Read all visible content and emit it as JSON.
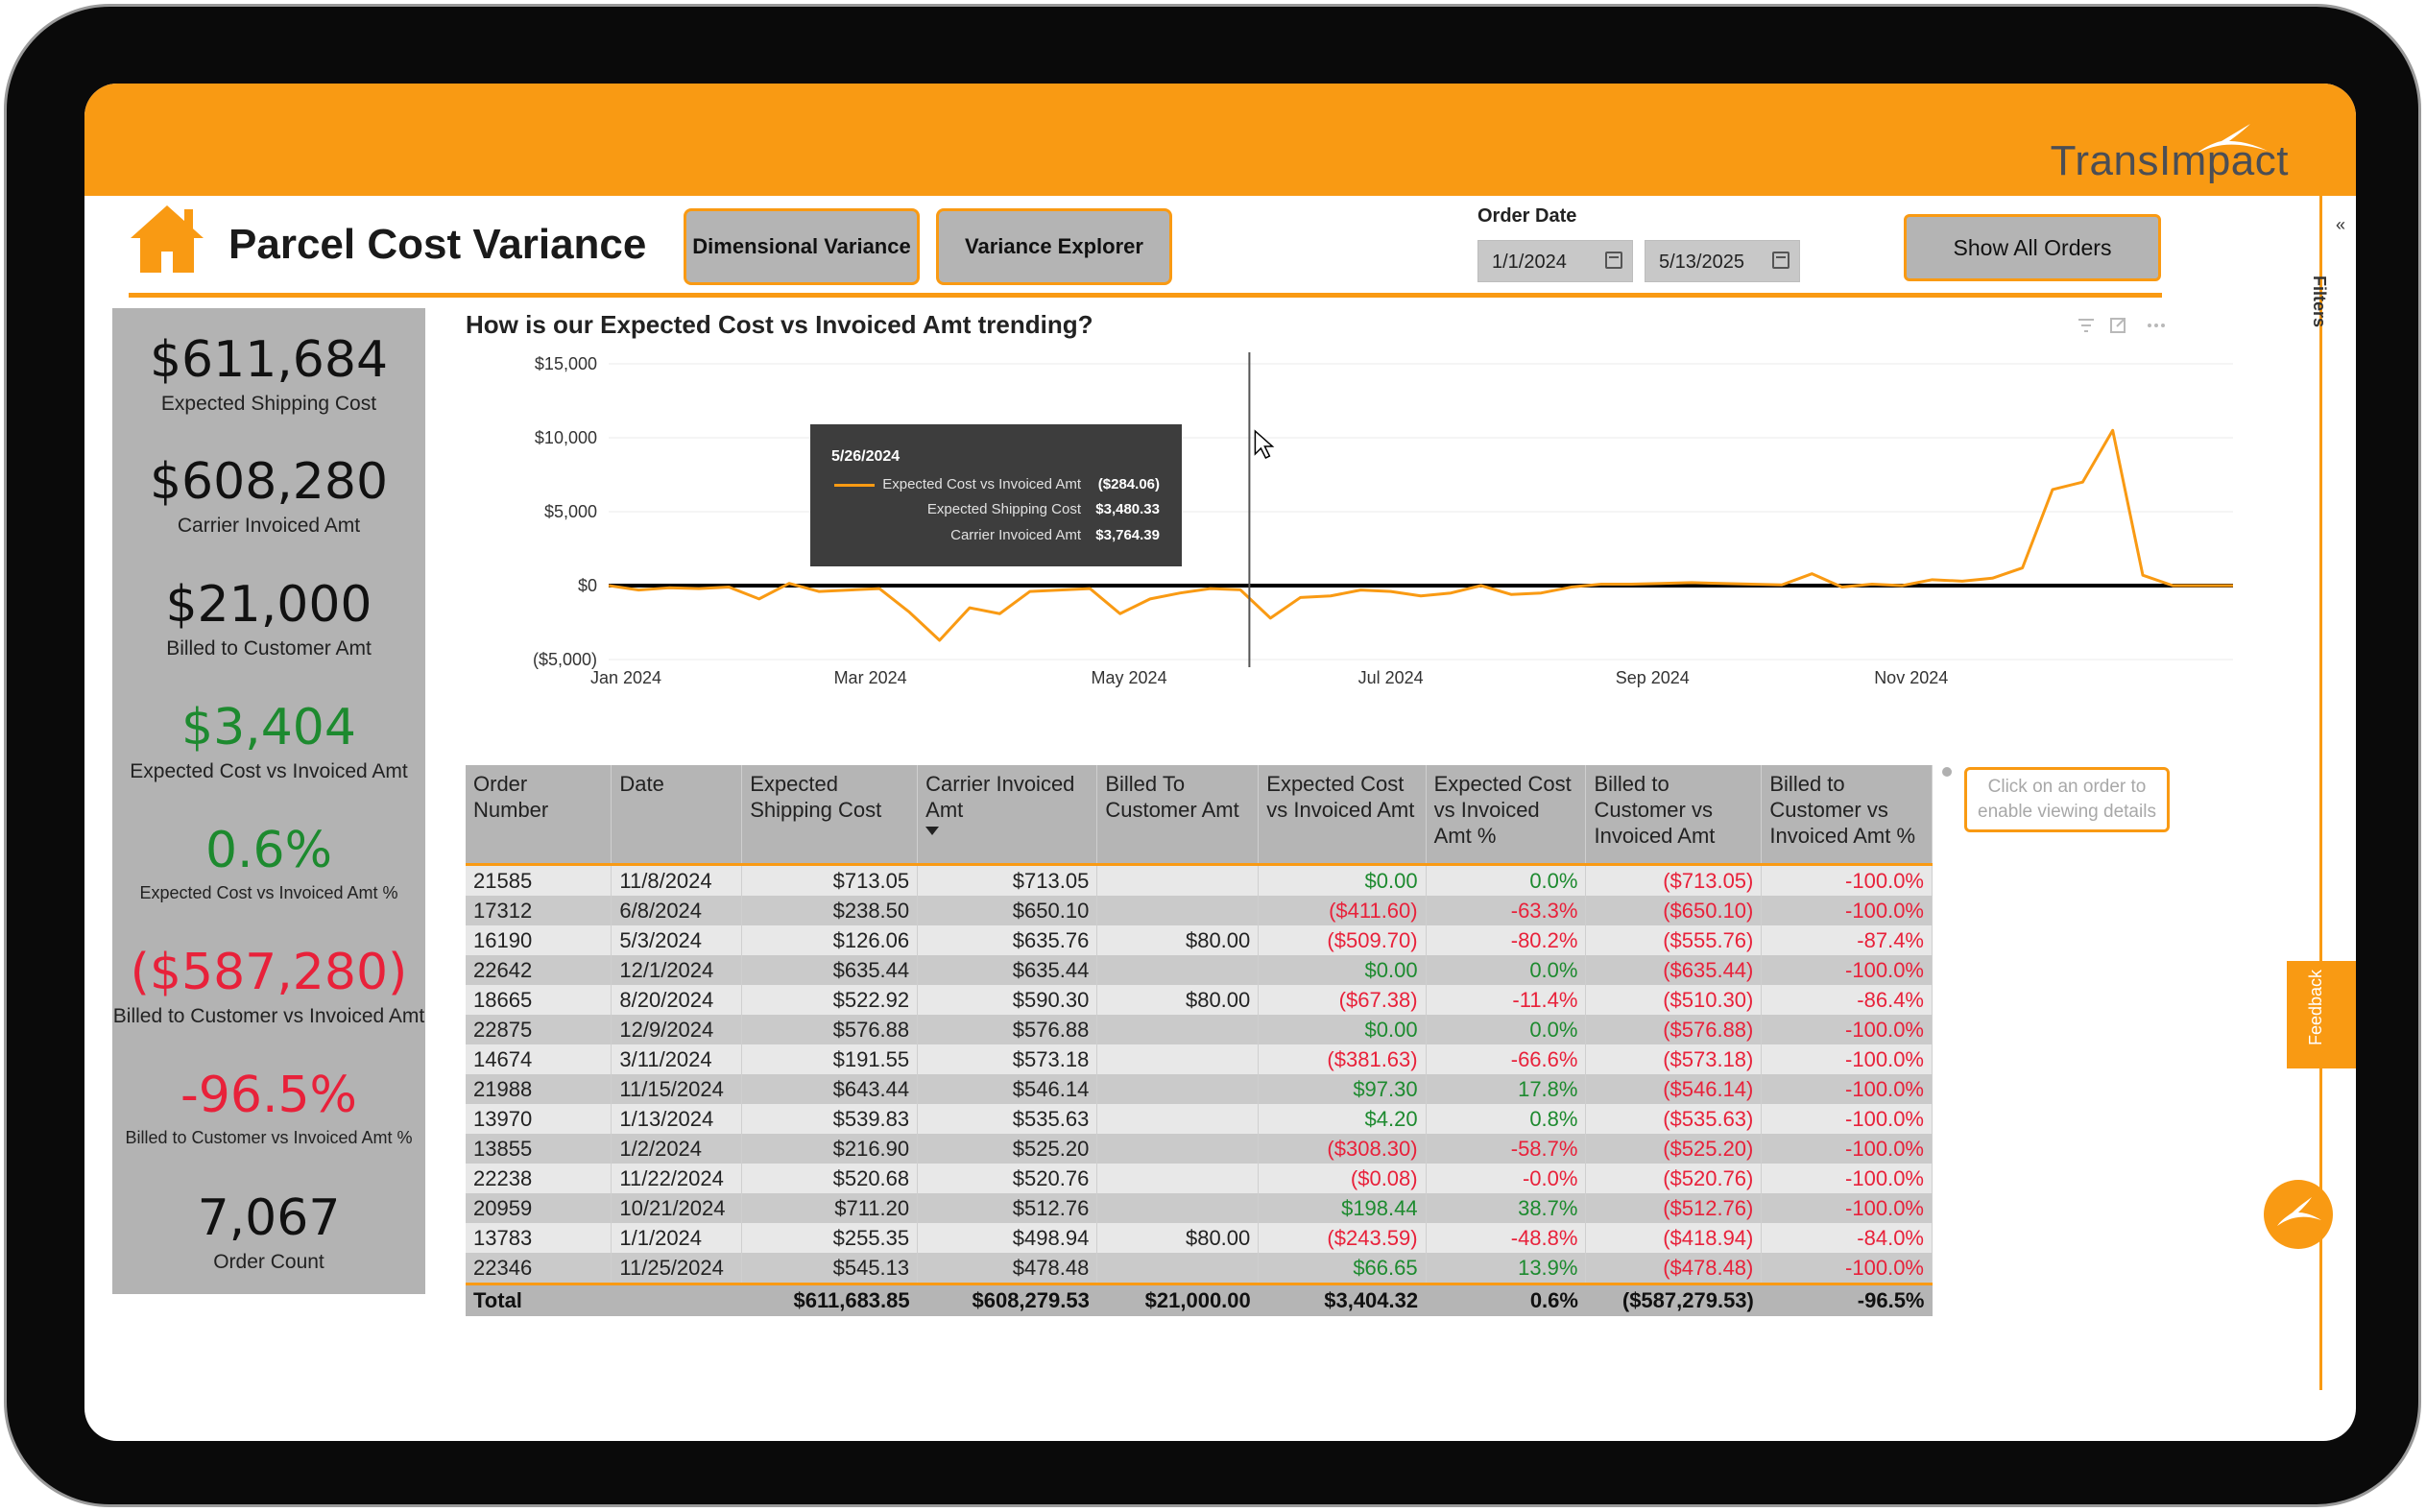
{
  "header": {
    "logo_text": "TransImpact",
    "title": "Parcel Cost Variance"
  },
  "nav": {
    "dimensional_label": "Dimensional Variance",
    "explorer_label": "Variance Explorer",
    "show_all_label": "Show All Orders"
  },
  "filter": {
    "label": "Order Date",
    "start": "1/1/2024",
    "end": "5/13/2025"
  },
  "kpis": [
    {
      "value": "$611,684",
      "label": "Expected Shipping Cost",
      "tone": "neutral"
    },
    {
      "value": "$608,280",
      "label": "Carrier Invoiced Amt",
      "tone": "neutral"
    },
    {
      "value": "$21,000",
      "label": "Billed to Customer Amt",
      "tone": "neutral"
    },
    {
      "value": "$3,404",
      "label": "Expected Cost vs Invoiced Amt",
      "tone": "positive"
    },
    {
      "value": "0.6%",
      "label": "Expected Cost vs Invoiced Amt %",
      "tone": "positive"
    },
    {
      "value": "($587,280)",
      "label": "Billed to Customer vs Invoiced Amt",
      "tone": "negative"
    },
    {
      "value": "-96.5%",
      "label": "Billed to Customer vs Invoiced Amt %",
      "tone": "negative"
    },
    {
      "value": "7,067",
      "label": "Order Count",
      "tone": "neutral"
    }
  ],
  "chart": {
    "title": "How is our Expected Cost vs Invoiced Amt trending?",
    "tooltip": {
      "date": "5/26/2024",
      "rows": [
        {
          "label": "Expected Cost vs Invoiced Amt",
          "value": "($284.06)"
        },
        {
          "label": "Expected Shipping Cost",
          "value": "$3,480.33"
        },
        {
          "label": "Carrier Invoiced Amt",
          "value": "$3,764.39"
        }
      ]
    }
  },
  "chart_data": {
    "type": "line",
    "title": "How is our Expected Cost vs Invoiced Amt trending?",
    "ylim": [
      -5000,
      15000
    ],
    "y_ticks": [
      "$15,000",
      "$10,000",
      "$5,000",
      "$0",
      "($5,000)"
    ],
    "y_tick_values": [
      15000,
      10000,
      5000,
      0,
      -5000
    ],
    "x_ticks": [
      "Jan 2024",
      "Mar 2024",
      "May 2024",
      "Jul 2024",
      "Sep 2024",
      "Nov 2024"
    ],
    "x_tick_weeks": [
      0,
      8.7,
      17.3,
      26,
      34.7,
      43.3
    ],
    "series": [
      {
        "name": "Expected Cost vs Invoiced Amt",
        "color": "#f99a13",
        "x_week": [
          0,
          1,
          2,
          3,
          4,
          5,
          6,
          7,
          8,
          9,
          10,
          11,
          12,
          13,
          14,
          15,
          16,
          17,
          18,
          19,
          20,
          21,
          22,
          23,
          24,
          25,
          26,
          27,
          28,
          29,
          30,
          31,
          32,
          33,
          34,
          35,
          36,
          37,
          38,
          39,
          40,
          41,
          42,
          43,
          44,
          45,
          46,
          47,
          48,
          49,
          50,
          51,
          52,
          53,
          54
        ],
        "values": [
          0,
          -300,
          -150,
          -200,
          -100,
          -900,
          150,
          -400,
          -300,
          -200,
          -1800,
          -3700,
          -1500,
          -1900,
          -400,
          -300,
          -200,
          -1900,
          -900,
          -500,
          -200,
          -284,
          -2200,
          -800,
          -700,
          -300,
          -400,
          -700,
          -500,
          0,
          -600,
          -500,
          -100,
          100,
          100,
          150,
          200,
          150,
          100,
          50,
          800,
          -100,
          100,
          0,
          400,
          300,
          500,
          1200,
          6500,
          7000,
          10500,
          700,
          0,
          0,
          0
        ]
      }
    ],
    "hover_week": 21.3,
    "grid": true
  },
  "table": {
    "headers": [
      "Order Number",
      "Date",
      "Expected Shipping Cost",
      "Carrier Invoiced Amt",
      "Billed To Customer Amt",
      "Expected Cost vs Invoiced Amt",
      "Expected Cost vs Invoiced Amt %",
      "Billed to Customer vs Invoiced Amt",
      "Billed to Customer vs Invoiced Amt %"
    ],
    "rows": [
      [
        "21585",
        "11/8/2024",
        "$713.05",
        "$713.05",
        "",
        "$0.00",
        "0.0%",
        "($713.05)",
        "-100.0%"
      ],
      [
        "17312",
        "6/8/2024",
        "$238.50",
        "$650.10",
        "",
        "($411.60)",
        "-63.3%",
        "($650.10)",
        "-100.0%"
      ],
      [
        "16190",
        "5/3/2024",
        "$126.06",
        "$635.76",
        "$80.00",
        "($509.70)",
        "-80.2%",
        "($555.76)",
        "-87.4%"
      ],
      [
        "22642",
        "12/1/2024",
        "$635.44",
        "$635.44",
        "",
        "$0.00",
        "0.0%",
        "($635.44)",
        "-100.0%"
      ],
      [
        "18665",
        "8/20/2024",
        "$522.92",
        "$590.30",
        "$80.00",
        "($67.38)",
        "-11.4%",
        "($510.30)",
        "-86.4%"
      ],
      [
        "22875",
        "12/9/2024",
        "$576.88",
        "$576.88",
        "",
        "$0.00",
        "0.0%",
        "($576.88)",
        "-100.0%"
      ],
      [
        "14674",
        "3/11/2024",
        "$191.55",
        "$573.18",
        "",
        "($381.63)",
        "-66.6%",
        "($573.18)",
        "-100.0%"
      ],
      [
        "21988",
        "11/15/2024",
        "$643.44",
        "$546.14",
        "",
        "$97.30",
        "17.8%",
        "($546.14)",
        "-100.0%"
      ],
      [
        "13970",
        "1/13/2024",
        "$539.83",
        "$535.63",
        "",
        "$4.20",
        "0.8%",
        "($535.63)",
        "-100.0%"
      ],
      [
        "13855",
        "1/2/2024",
        "$216.90",
        "$525.20",
        "",
        "($308.30)",
        "-58.7%",
        "($525.20)",
        "-100.0%"
      ],
      [
        "22238",
        "11/22/2024",
        "$520.68",
        "$520.76",
        "",
        "($0.08)",
        "-0.0%",
        "($520.76)",
        "-100.0%"
      ],
      [
        "20959",
        "10/21/2024",
        "$711.20",
        "$512.76",
        "",
        "$198.44",
        "38.7%",
        "($512.76)",
        "-100.0%"
      ],
      [
        "13783",
        "1/1/2024",
        "$255.35",
        "$498.94",
        "$80.00",
        "($243.59)",
        "-48.8%",
        "($418.94)",
        "-84.0%"
      ],
      [
        "22346",
        "11/25/2024",
        "$545.13",
        "$478.48",
        "",
        "$66.65",
        "13.9%",
        "($478.48)",
        "-100.0%"
      ]
    ],
    "totals": [
      "Total",
      "",
      "$611,683.85",
      "$608,279.53",
      "$21,000.00",
      "$3,404.32",
      "0.6%",
      "($587,279.53)",
      "-96.5%"
    ]
  },
  "side": {
    "hint": "Click on an order to enable viewing details",
    "filters_label": "Filters",
    "feedback_label": "Feedback"
  },
  "colors": {
    "accent": "#f99a13",
    "positive": "#1d8a2f",
    "negative": "#e8213a",
    "panel": "#b3b3b3"
  }
}
